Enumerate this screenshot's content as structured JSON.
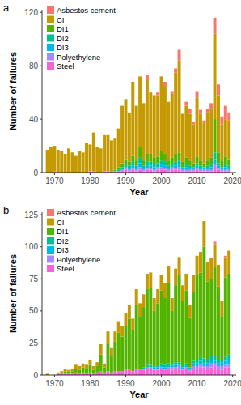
{
  "chart_data": [
    {
      "type": "bar",
      "title": "a",
      "x_label": "Year",
      "y_label": "Number of failures",
      "stacked": true,
      "grid": false,
      "legend": "top-left",
      "x": [
        1968,
        1969,
        1970,
        1971,
        1972,
        1973,
        1974,
        1975,
        1976,
        1977,
        1978,
        1979,
        1980,
        1981,
        1982,
        1983,
        1984,
        1985,
        1986,
        1987,
        1988,
        1989,
        1990,
        1991,
        1992,
        1993,
        1994,
        1995,
        1996,
        1997,
        1998,
        1999,
        2000,
        2001,
        2002,
        2003,
        2004,
        2005,
        2006,
        2007,
        2008,
        2009,
        2010,
        2011,
        2012,
        2013,
        2014,
        2015,
        2016,
        2017,
        2018,
        2019
      ],
      "xlim": [
        1966.5,
        2021
      ],
      "xticks": [
        1970,
        1980,
        1990,
        2000,
        2010,
        2020
      ],
      "ylim": [
        0,
        122
      ],
      "yticks": [
        0,
        40,
        80,
        120
      ],
      "series": [
        {
          "name": "Asbestos cement",
          "color": "#F8766D",
          "values": [
            0,
            0,
            0,
            0,
            0,
            0,
            0,
            0,
            0,
            0,
            0,
            0,
            0,
            0,
            0,
            0,
            0,
            0,
            0,
            0,
            0,
            0,
            0,
            0,
            0,
            0,
            0,
            0,
            3,
            0,
            0,
            2,
            0,
            3,
            0,
            2,
            3,
            8,
            0,
            3,
            4,
            2,
            5,
            3,
            2,
            3,
            4,
            12,
            8,
            6,
            10,
            6
          ]
        },
        {
          "name": "CI",
          "color": "#C49A00",
          "values": [
            17,
            19,
            19,
            17,
            16,
            14,
            18,
            15,
            13,
            16,
            15,
            22,
            20,
            29,
            19,
            18,
            27,
            27,
            23,
            24,
            29,
            43,
            45,
            37,
            55,
            41,
            53,
            43,
            56,
            46,
            47,
            46,
            56,
            51,
            44,
            48,
            61,
            69,
            36,
            39,
            35,
            29,
            44,
            35,
            30,
            36,
            37,
            64,
            43,
            27,
            28,
            29
          ]
        },
        {
          "name": "DI1",
          "color": "#53B400",
          "values": [
            0,
            0,
            0,
            0,
            0,
            0,
            0,
            0,
            0,
            0,
            0,
            0,
            0,
            0,
            0,
            0,
            0,
            0,
            1,
            1,
            2,
            3,
            4,
            3,
            5,
            4,
            8,
            4,
            6,
            6,
            5,
            5,
            7,
            6,
            4,
            5,
            6,
            6,
            4,
            5,
            4,
            3,
            5,
            4,
            3,
            4,
            5,
            25,
            8,
            5,
            6,
            5
          ]
        },
        {
          "name": "DI2",
          "color": "#00C094",
          "values": [
            0,
            0,
            0,
            0,
            0,
            0,
            0,
            0,
            0,
            0,
            0,
            0,
            0,
            0,
            0,
            0,
            0,
            0,
            0,
            0,
            1,
            2,
            2,
            2,
            3,
            2,
            4,
            2,
            3,
            3,
            2,
            3,
            3,
            3,
            2,
            2,
            3,
            3,
            1,
            2,
            2,
            1,
            2,
            2,
            1,
            2,
            2,
            5,
            2,
            1,
            2,
            2
          ]
        },
        {
          "name": "DI3",
          "color": "#00B6EB",
          "values": [
            0,
            0,
            0,
            0,
            0,
            0,
            0,
            0,
            0,
            0,
            0,
            0,
            0,
            0,
            0,
            0,
            0,
            0,
            0,
            0,
            0,
            0,
            1,
            1,
            2,
            1,
            3,
            1,
            2,
            2,
            2,
            1,
            2,
            2,
            1,
            1,
            2,
            2,
            1,
            2,
            1,
            1,
            2,
            1,
            1,
            1,
            2,
            4,
            2,
            1,
            2,
            1
          ]
        },
        {
          "name": "Polyethylene",
          "color": "#A58AFF",
          "values": [
            0,
            0,
            0,
            0,
            0,
            0,
            0,
            0,
            0,
            0,
            0,
            0,
            0,
            0,
            0,
            0,
            0,
            0,
            0,
            0,
            0,
            1,
            1,
            1,
            1,
            1,
            2,
            1,
            1,
            1,
            1,
            1,
            2,
            1,
            1,
            1,
            1,
            2,
            1,
            1,
            1,
            1,
            1,
            1,
            1,
            1,
            1,
            3,
            1,
            1,
            1,
            1
          ]
        },
        {
          "name": "Steel",
          "color": "#FB61D7",
          "values": [
            0,
            0,
            1,
            0,
            0,
            0,
            0,
            0,
            0,
            0,
            0,
            0,
            1,
            1,
            0,
            0,
            1,
            1,
            0,
            1,
            1,
            1,
            2,
            1,
            2,
            1,
            2,
            1,
            2,
            2,
            1,
            2,
            2,
            2,
            1,
            2,
            2,
            2,
            1,
            1,
            1,
            1,
            2,
            1,
            1,
            1,
            1,
            3,
            2,
            1,
            1,
            1
          ]
        }
      ]
    },
    {
      "type": "bar",
      "title": "b",
      "x_label": "Year",
      "y_label": "Number of failures",
      "stacked": true,
      "grid": false,
      "legend": "top-left",
      "x": [
        1968,
        1969,
        1970,
        1971,
        1972,
        1973,
        1974,
        1975,
        1976,
        1977,
        1978,
        1979,
        1980,
        1981,
        1982,
        1983,
        1984,
        1985,
        1986,
        1987,
        1988,
        1989,
        1990,
        1991,
        1992,
        1993,
        1994,
        1995,
        1996,
        1997,
        1998,
        1999,
        2000,
        2001,
        2002,
        2003,
        2004,
        2005,
        2006,
        2007,
        2008,
        2009,
        2010,
        2011,
        2012,
        2013,
        2014,
        2015,
        2016,
        2017,
        2018,
        2019
      ],
      "xlim": [
        1966.5,
        2021
      ],
      "xticks": [
        1970,
        1980,
        1990,
        2000,
        2010,
        2020
      ],
      "ylim": [
        0,
        127
      ],
      "yticks": [
        0,
        25,
        50,
        75,
        100,
        125
      ],
      "series": [
        {
          "name": "Asbestos cement",
          "color": "#F8766D",
          "values": [
            0,
            0,
            0,
            0,
            0,
            0,
            0,
            0,
            0,
            0,
            0,
            0,
            0,
            0,
            0,
            0,
            0,
            0,
            0,
            0,
            0,
            0,
            0,
            0,
            0,
            0,
            0,
            0,
            0,
            0,
            0,
            0,
            0,
            0,
            0,
            0,
            0,
            0,
            0,
            0,
            0,
            0,
            0,
            0,
            0,
            0,
            0,
            2,
            0,
            0,
            1,
            0
          ]
        },
        {
          "name": "CI",
          "color": "#C49A00",
          "values": [
            1,
            0,
            0,
            1,
            1,
            2,
            1,
            2,
            3,
            3,
            3,
            3,
            4,
            3,
            3,
            8,
            3,
            10,
            6,
            8,
            9,
            8,
            10,
            11,
            9,
            12,
            10,
            10,
            12,
            12,
            10,
            11,
            12,
            12,
            13,
            10,
            13,
            14,
            12,
            13,
            10,
            13,
            15,
            16,
            20,
            15,
            16,
            18,
            17,
            12,
            16,
            18
          ]
        },
        {
          "name": "DI1",
          "color": "#53B400",
          "values": [
            0,
            0,
            0,
            0,
            1,
            2,
            2,
            2,
            3,
            3,
            4,
            4,
            6,
            3,
            5,
            13,
            4,
            21,
            13,
            23,
            30,
            27,
            34,
            40,
            32,
            50,
            41,
            47,
            59,
            60,
            43,
            49,
            57,
            52,
            63,
            42,
            60,
            68,
            51,
            57,
            39,
            54,
            66,
            66,
            87,
            61,
            60,
            69,
            57,
            34,
            62,
            63
          ]
        },
        {
          "name": "DI2",
          "color": "#00C094",
          "values": [
            0,
            0,
            0,
            0,
            0,
            0,
            0,
            0,
            0,
            0,
            0,
            0,
            0,
            0,
            0,
            0,
            0,
            0,
            0,
            0,
            0,
            0,
            0,
            0,
            0,
            1,
            1,
            1,
            2,
            2,
            1,
            1,
            2,
            2,
            2,
            1,
            2,
            2,
            1,
            2,
            1,
            2,
            3,
            3,
            4,
            3,
            3,
            4,
            3,
            2,
            3,
            4
          ]
        },
        {
          "name": "DI3",
          "color": "#00B6EB",
          "values": [
            0,
            0,
            0,
            0,
            0,
            0,
            0,
            0,
            0,
            0,
            0,
            0,
            0,
            0,
            0,
            0,
            0,
            0,
            0,
            0,
            0,
            0,
            0,
            0,
            0,
            0,
            0,
            0,
            0,
            0,
            1,
            1,
            1,
            1,
            1,
            1,
            2,
            1,
            1,
            1,
            1,
            2,
            2,
            3,
            2,
            2,
            3,
            2,
            2,
            3,
            3,
            4
          ]
        },
        {
          "name": "Polyethylene",
          "color": "#A58AFF",
          "values": [
            0,
            0,
            0,
            0,
            0,
            0,
            0,
            0,
            0,
            0,
            0,
            0,
            0,
            0,
            0,
            0,
            0,
            0,
            0,
            0,
            0,
            0,
            0,
            0,
            0,
            0,
            0,
            1,
            1,
            1,
            1,
            1,
            1,
            1,
            1,
            2,
            1,
            2,
            1,
            1,
            1,
            2,
            2,
            2,
            1,
            2,
            3,
            2,
            2,
            3,
            2,
            2
          ]
        },
        {
          "name": "Steel",
          "color": "#FB61D7",
          "values": [
            0,
            0,
            0,
            1,
            1,
            1,
            1,
            1,
            2,
            1,
            2,
            1,
            2,
            1,
            2,
            3,
            2,
            3,
            2,
            3,
            3,
            3,
            4,
            4,
            3,
            4,
            4,
            4,
            5,
            5,
            4,
            4,
            5,
            4,
            5,
            4,
            5,
            5,
            4,
            5,
            3,
            5,
            5,
            6,
            6,
            5,
            6,
            7,
            5,
            4,
            6,
            6
          ]
        }
      ]
    }
  ]
}
